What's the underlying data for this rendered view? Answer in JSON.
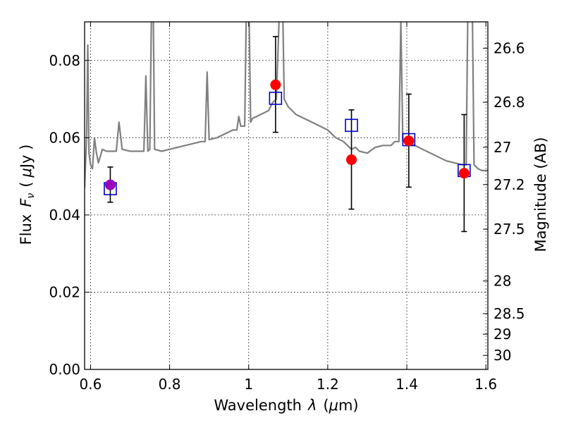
{
  "chart_data": {
    "type": "scatter",
    "title": "",
    "xlabel_prefix": "Wavelength",
    "xlabel_symbol": "λ",
    "xlabel_unit_open": "(",
    "xlabel_unit_mu": "μ",
    "xlabel_unit_rest": "m)",
    "ylabel_prefix": "Flux",
    "ylabel_symbol": "F",
    "ylabel_sub": "ν",
    "ylabel_unit_open": "(",
    "ylabel_unit_mu": "μ",
    "ylabel_unit_rest": "Jy )",
    "y2label": "Magnitude (AB)",
    "xlim": [
      0.585,
      1.605
    ],
    "ylim": [
      0.0,
      0.09
    ],
    "grid": true,
    "x_ticks": [
      0.6,
      0.8,
      1.0,
      1.2,
      1.4,
      1.6
    ],
    "x_tick_labels": [
      "0.6",
      "0.8",
      "1",
      "1.2",
      "1.4",
      "1.6"
    ],
    "y_ticks": [
      0.0,
      0.02,
      0.04,
      0.06,
      0.08
    ],
    "y_tick_labels": [
      "0.00",
      "0.02",
      "0.04",
      "0.06",
      "0.08"
    ],
    "mag_ticks": [
      26.6,
      26.8,
      27.0,
      27.2,
      27.5,
      28.0,
      28.5,
      29.0,
      30.0
    ],
    "mag_tick_labels": [
      "26.6",
      "26.8",
      "27",
      "27.2",
      "27.5",
      "28",
      "28.5",
      "29",
      "30"
    ],
    "colors": {
      "spectrum": "#808080",
      "observed": "#ff0000",
      "model": "#0000cc",
      "overlap": "#9900bb",
      "errorbar": "#000000"
    },
    "spectrum": [
      [
        0.585,
        0.047
      ],
      [
        0.59,
        0.06
      ],
      [
        0.593,
        0.084
      ],
      [
        0.596,
        0.056
      ],
      [
        0.6,
        0.053
      ],
      [
        0.605,
        0.052
      ],
      [
        0.61,
        0.06
      ],
      [
        0.615,
        0.056
      ],
      [
        0.62,
        0.0535
      ],
      [
        0.63,
        0.057
      ],
      [
        0.64,
        0.0565
      ],
      [
        0.65,
        0.0565
      ],
      [
        0.665,
        0.0565
      ],
      [
        0.672,
        0.064
      ],
      [
        0.68,
        0.057
      ],
      [
        0.7,
        0.0565
      ],
      [
        0.72,
        0.0565
      ],
      [
        0.735,
        0.0565
      ],
      [
        0.74,
        0.076
      ],
      [
        0.745,
        0.0565
      ],
      [
        0.75,
        0.057
      ],
      [
        0.755,
        0.1
      ],
      [
        0.758,
        0.1
      ],
      [
        0.762,
        0.057
      ],
      [
        0.78,
        0.0565
      ],
      [
        0.8,
        0.057
      ],
      [
        0.82,
        0.0575
      ],
      [
        0.84,
        0.058
      ],
      [
        0.86,
        0.0585
      ],
      [
        0.88,
        0.059
      ],
      [
        0.89,
        0.059
      ],
      [
        0.895,
        0.077
      ],
      [
        0.9,
        0.0595
      ],
      [
        0.92,
        0.06
      ],
      [
        0.94,
        0.061
      ],
      [
        0.96,
        0.062
      ],
      [
        0.97,
        0.062
      ],
      [
        0.975,
        0.0655
      ],
      [
        0.98,
        0.063
      ],
      [
        0.99,
        0.063
      ],
      [
        0.995,
        0.1
      ],
      [
        1.0,
        0.1
      ],
      [
        1.005,
        0.064
      ],
      [
        1.01,
        0.065
      ],
      [
        1.02,
        0.0655
      ],
      [
        1.03,
        0.066
      ],
      [
        1.04,
        0.0665
      ],
      [
        1.05,
        0.067
      ],
      [
        1.06,
        0.069
      ],
      [
        1.07,
        0.07
      ],
      [
        1.08,
        0.1
      ],
      [
        1.085,
        0.1
      ],
      [
        1.09,
        0.07
      ],
      [
        1.1,
        0.068
      ],
      [
        1.11,
        0.067
      ],
      [
        1.12,
        0.066
      ],
      [
        1.14,
        0.065
      ],
      [
        1.16,
        0.064
      ],
      [
        1.18,
        0.063
      ],
      [
        1.2,
        0.062
      ],
      [
        1.22,
        0.06
      ],
      [
        1.24,
        0.059
      ],
      [
        1.25,
        0.058
      ],
      [
        1.26,
        0.057
      ],
      [
        1.27,
        0.0575
      ],
      [
        1.28,
        0.0565
      ],
      [
        1.3,
        0.056
      ],
      [
        1.32,
        0.0575
      ],
      [
        1.34,
        0.058
      ],
      [
        1.36,
        0.058
      ],
      [
        1.37,
        0.059
      ],
      [
        1.38,
        0.059
      ],
      [
        1.385,
        0.09
      ],
      [
        1.39,
        0.059
      ],
      [
        1.4,
        0.059
      ],
      [
        1.42,
        0.058
      ],
      [
        1.44,
        0.057
      ],
      [
        1.46,
        0.056
      ],
      [
        1.48,
        0.055
      ],
      [
        1.5,
        0.054
      ],
      [
        1.52,
        0.0535
      ],
      [
        1.54,
        0.053
      ],
      [
        1.55,
        0.053
      ],
      [
        1.555,
        0.1
      ],
      [
        1.565,
        0.1
      ],
      [
        1.57,
        0.053
      ],
      [
        1.58,
        0.052
      ],
      [
        1.59,
        0.0515
      ],
      [
        1.605,
        0.0515
      ]
    ],
    "observed": [
      {
        "x": 0.65,
        "y": 0.0478,
        "yerr_low": 0.0433,
        "yerr_high": 0.0524
      },
      {
        "x": 1.068,
        "y": 0.0737,
        "yerr_low": 0.0614,
        "yerr_high": 0.0862
      },
      {
        "x": 1.26,
        "y": 0.0543,
        "yerr_low": 0.0415,
        "yerr_high": 0.0672
      },
      {
        "x": 1.405,
        "y": 0.0592,
        "yerr_low": 0.0472,
        "yerr_high": 0.0713
      },
      {
        "x": 1.545,
        "y": 0.0508,
        "yerr_low": 0.0357,
        "yerr_high": 0.066
      }
    ],
    "model": [
      {
        "x": 0.65,
        "y": 0.0468
      },
      {
        "x": 1.068,
        "y": 0.0702
      },
      {
        "x": 1.26,
        "y": 0.0632
      },
      {
        "x": 1.405,
        "y": 0.0595
      },
      {
        "x": 1.545,
        "y": 0.0515
      }
    ]
  }
}
